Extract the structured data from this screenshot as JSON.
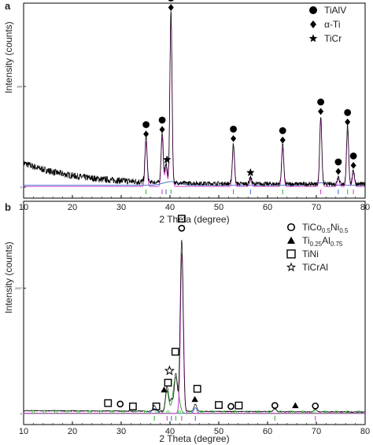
{
  "chart_data": [
    {
      "panel_label": "a",
      "type": "line",
      "xlabel": "2 Theta (degree)",
      "ylabel": "Intensity (counts)",
      "xlim": [
        10,
        80
      ],
      "xticks": [
        10,
        20,
        30,
        40,
        50,
        60,
        70,
        80
      ],
      "yticks": [
        0,
        334
      ],
      "ylim": [
        0,
        600
      ],
      "peaks": [
        {
          "x": 35.1,
          "y": 150
        },
        {
          "x": 38.4,
          "y": 165
        },
        {
          "x": 39.2,
          "y": 65
        },
        {
          "x": 40.2,
          "y": 570
        },
        {
          "x": 53.0,
          "y": 135
        },
        {
          "x": 56.5,
          "y": 22
        },
        {
          "x": 63.1,
          "y": 130
        },
        {
          "x": 70.9,
          "y": 225
        },
        {
          "x": 74.5,
          "y": 26
        },
        {
          "x": 76.4,
          "y": 190
        },
        {
          "x": 77.6,
          "y": 46
        }
      ],
      "legend": {
        "position": "top-right",
        "items": [
          {
            "symbol": "filled-circle",
            "label": "TiAlV"
          },
          {
            "symbol": "filled-diamond",
            "label": "α-Ti"
          },
          {
            "symbol": "filled-star",
            "label": "TiCr"
          }
        ]
      },
      "markers": [
        {
          "x": 35.1,
          "symbols": [
            "filled-circle",
            "filled-diamond"
          ]
        },
        {
          "x": 38.4,
          "symbols": [
            "filled-circle",
            "filled-diamond"
          ]
        },
        {
          "x": 39.4,
          "symbols": [
            "filled-star"
          ]
        },
        {
          "x": 40.2,
          "symbols": [
            "filled-circle",
            "filled-diamond"
          ]
        },
        {
          "x": 53.0,
          "symbols": [
            "filled-circle",
            "filled-diamond"
          ]
        },
        {
          "x": 56.5,
          "symbols": [
            "filled-star"
          ]
        },
        {
          "x": 63.1,
          "symbols": [
            "filled-circle",
            "filled-diamond"
          ]
        },
        {
          "x": 70.9,
          "symbols": [
            "filled-circle",
            "filled-diamond"
          ]
        },
        {
          "x": 74.5,
          "symbols": [
            "filled-circle",
            "filled-diamond"
          ]
        },
        {
          "x": 76.4,
          "symbols": [
            "filled-circle",
            "filled-diamond"
          ]
        },
        {
          "x": 77.6,
          "symbols": [
            "filled-circle",
            "filled-diamond"
          ]
        }
      ]
    },
    {
      "panel_label": "b",
      "type": "line",
      "xlabel": "2 Theta (degree)",
      "ylabel": "Intensity (counts)",
      "xlim": [
        10,
        80
      ],
      "xticks": [
        10,
        20,
        30,
        40,
        50,
        60,
        70,
        80
      ],
      "yticks": [
        0,
        2637
      ],
      "ylim": [
        0,
        4400
      ],
      "peaks": [
        {
          "x": 36.8,
          "y": 120
        },
        {
          "x": 39.4,
          "y": 520
        },
        {
          "x": 40.3,
          "y": 250
        },
        {
          "x": 41.2,
          "y": 800
        },
        {
          "x": 42.4,
          "y": 3600
        },
        {
          "x": 45.2,
          "y": 150
        },
        {
          "x": 61.5,
          "y": 60
        },
        {
          "x": 69.8,
          "y": 55
        }
      ],
      "legend": {
        "position": "top-right",
        "items": [
          {
            "symbol": "open-circle",
            "label": "TiCo",
            "sub1": "0.5",
            "label2": "Ni",
            "sub2": "0.5"
          },
          {
            "symbol": "filled-triangle",
            "label": "Ti",
            "sub1": "0.25",
            "label2": "Al",
            "sub2": "0.75"
          },
          {
            "symbol": "open-square",
            "label": "TiNi"
          },
          {
            "symbol": "open-star",
            "label": "TiCrAl"
          }
        ]
      },
      "markers": [
        {
          "x": 27.3,
          "y": 220,
          "symbol": "open-square"
        },
        {
          "x": 29.8,
          "y": 200,
          "symbol": "open-circle"
        },
        {
          "x": 32.4,
          "y": 150,
          "symbol": "open-square"
        },
        {
          "x": 37.2,
          "y": 150,
          "symbol": "open-square"
        },
        {
          "x": 38.8,
          "y": 500,
          "symbol": "filled-triangle"
        },
        {
          "x": 39.6,
          "y": 650,
          "symbol": "open-square"
        },
        {
          "x": 39.9,
          "y": 900,
          "symbol": "open-star"
        },
        {
          "x": 41.1,
          "y": 1300,
          "symbol": "open-square"
        },
        {
          "x": 42.4,
          "y": 3900,
          "symbol": "open-circle"
        },
        {
          "x": 42.4,
          "y": 4100,
          "symbol": "open-square"
        },
        {
          "x": 45.1,
          "y": 300,
          "symbol": "filled-triangle"
        },
        {
          "x": 45.6,
          "y": 520,
          "symbol": "open-square"
        },
        {
          "x": 50.0,
          "y": 180,
          "symbol": "open-square"
        },
        {
          "x": 52.5,
          "y": 150,
          "symbol": "open-circle"
        },
        {
          "x": 54.1,
          "y": 170,
          "symbol": "open-square"
        },
        {
          "x": 61.5,
          "y": 170,
          "symbol": "open-circle"
        },
        {
          "x": 65.7,
          "y": 170,
          "symbol": "filled-triangle"
        },
        {
          "x": 69.8,
          "y": 160,
          "symbol": "open-circle"
        }
      ]
    }
  ]
}
